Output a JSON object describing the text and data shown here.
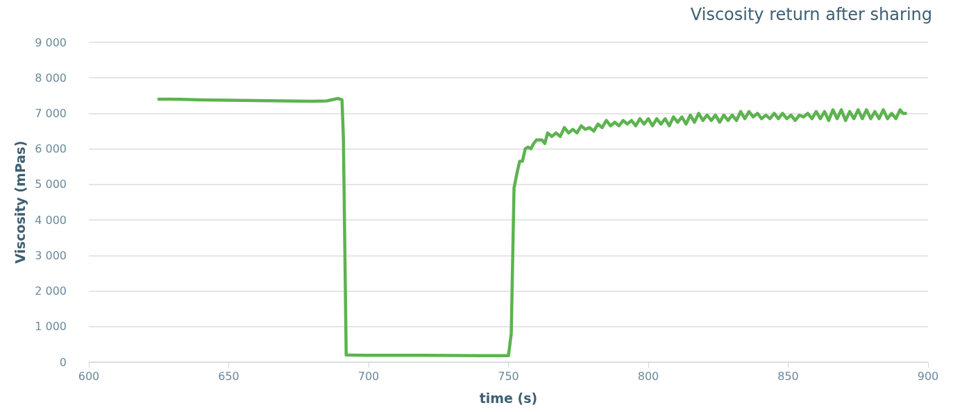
{
  "chart_data": {
    "type": "line",
    "title": "Viscosity return after sharing",
    "xlabel": "time (s)",
    "ylabel": "Viscosity (mPas)",
    "xlim": [
      600,
      900
    ],
    "xticks": [
      600,
      650,
      700,
      750,
      800,
      850,
      900
    ],
    "ylim": [
      0,
      9000
    ],
    "yticks": [
      0,
      {
        "value": 1000,
        "label": "1 000"
      },
      {
        "value": 2000,
        "label": "2 000"
      },
      {
        "value": 3000,
        "label": "3 000"
      },
      {
        "value": 4000,
        "label": "4 000"
      },
      {
        "value": 5000,
        "label": "5 000"
      },
      {
        "value": 6000,
        "label": "6 000"
      },
      {
        "value": 7000,
        "label": "7 000"
      },
      {
        "value": 8000,
        "label": "8 000"
      },
      {
        "value": 9000,
        "label": "9 000"
      }
    ],
    "grid": "y",
    "marker": "none",
    "line_style": "solid",
    "series": [
      {
        "color": "#5cb34f",
        "x": [
          625,
          630,
          640,
          650,
          660,
          670,
          680,
          685,
          689,
          690.5,
          691,
          692,
          700,
          720,
          740,
          750,
          751,
          752,
          753,
          754,
          755,
          756,
          757,
          758,
          759,
          760,
          762,
          763,
          764,
          765.5,
          767,
          768.5,
          770,
          771.5,
          773,
          774.5,
          776,
          777.5,
          779,
          780.5,
          782,
          783.5,
          785,
          786.5,
          788,
          789.5,
          791,
          792.5,
          794,
          795.5,
          797,
          798.5,
          800,
          801.5,
          803,
          804.5,
          806,
          807.5,
          809,
          810.5,
          812,
          813.5,
          815,
          816.5,
          818,
          819.5,
          821,
          822.5,
          824,
          825.5,
          827,
          828.5,
          830,
          831.5,
          833,
          834.5,
          836,
          837.5,
          839,
          840.5,
          842,
          843.5,
          845,
          846.5,
          848,
          849.5,
          851,
          852.5,
          854,
          855.5,
          857,
          858.5,
          860,
          861.5,
          863,
          864.5,
          866,
          867.5,
          869,
          870.5,
          872,
          873.5,
          875,
          876.5,
          878,
          879.5,
          881,
          882.5,
          884,
          885.5,
          887,
          888.5,
          890,
          891,
          892
        ],
        "values": [
          7400,
          7400,
          7380,
          7370,
          7360,
          7350,
          7340,
          7350,
          7420,
          7380,
          6300,
          200,
          190,
          190,
          180,
          180,
          800,
          4900,
          5300,
          5650,
          5650,
          6000,
          6050,
          6000,
          6150,
          6250,
          6250,
          6150,
          6450,
          6350,
          6450,
          6350,
          6600,
          6450,
          6550,
          6450,
          6650,
          6550,
          6600,
          6500,
          6700,
          6600,
          6800,
          6650,
          6750,
          6650,
          6800,
          6700,
          6800,
          6650,
          6850,
          6700,
          6850,
          6650,
          6850,
          6700,
          6850,
          6650,
          6900,
          6750,
          6900,
          6700,
          6950,
          6750,
          7000,
          6800,
          6950,
          6800,
          6950,
          6750,
          6950,
          6800,
          6950,
          6800,
          7050,
          6850,
          7050,
          6900,
          7000,
          6850,
          6950,
          6850,
          7000,
          6850,
          7000,
          6850,
          6950,
          6800,
          6950,
          6900,
          7000,
          6850,
          7050,
          6850,
          7050,
          6800,
          7100,
          6850,
          7100,
          6800,
          7050,
          6850,
          7100,
          6850,
          7100,
          6850,
          7050,
          6850,
          7100,
          6850,
          7000,
          6850,
          7100,
          7000,
          7000
        ]
      }
    ]
  }
}
